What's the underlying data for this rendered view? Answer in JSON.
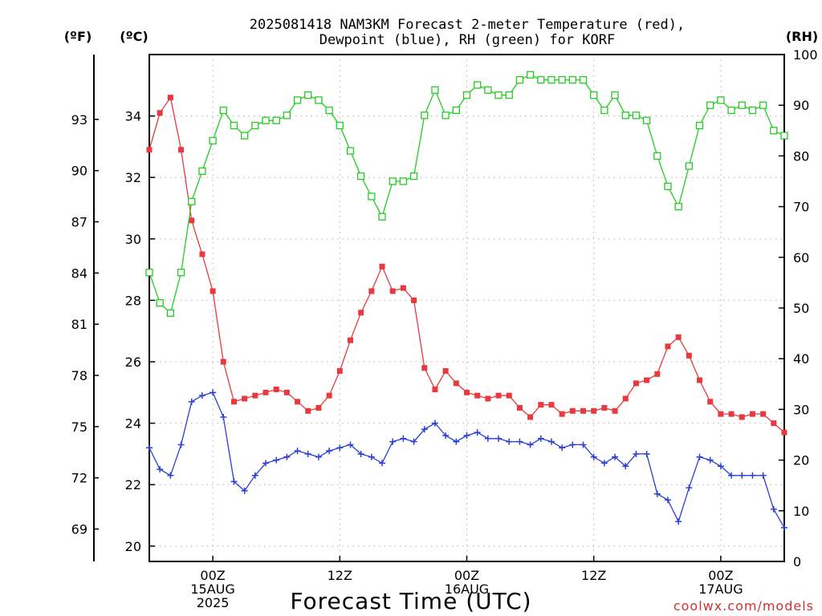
{
  "chart_data": {
    "type": "line",
    "title_line1": "2025081418 NAM3KM Forecast 2-meter Temperature (red),",
    "title_line2": "Dewpoint (blue), RH (green) for KORF",
    "xlabel": "Forecast Time (UTC)",
    "credit": "coolwx.com/models",
    "units": {
      "fahrenheit": "(ºF)",
      "celsius": "(ºC)",
      "rh": "(RH)"
    },
    "grid": true,
    "x_unit": "hours since 2025-08-14 18Z",
    "xlim": [
      0,
      60
    ],
    "x_ticks": [
      {
        "x": 6,
        "lines": [
          "00Z",
          "15AUG",
          "2025"
        ]
      },
      {
        "x": 18,
        "lines": [
          "12Z"
        ]
      },
      {
        "x": 30,
        "lines": [
          "00Z",
          "16AUG"
        ]
      },
      {
        "x": 42,
        "lines": [
          "12Z"
        ]
      },
      {
        "x": 54,
        "lines": [
          "00Z",
          "17AUG"
        ]
      }
    ],
    "y_celsius": {
      "lim": [
        19.5,
        36.0
      ],
      "ticks": [
        20,
        22,
        24,
        26,
        28,
        30,
        32,
        34
      ]
    },
    "y_fahrenheit_ticks": [
      69,
      72,
      75,
      78,
      81,
      84,
      87,
      90,
      93
    ],
    "y_rh": {
      "lim": [
        0,
        100
      ],
      "ticks": [
        0,
        10,
        20,
        30,
        40,
        50,
        60,
        70,
        80,
        90,
        100
      ]
    },
    "x": [
      0,
      1,
      2,
      3,
      4,
      5,
      6,
      7,
      8,
      9,
      10,
      11,
      12,
      13,
      14,
      15,
      16,
      17,
      18,
      19,
      20,
      21,
      22,
      23,
      24,
      25,
      26,
      27,
      28,
      29,
      30,
      31,
      32,
      33,
      34,
      35,
      36,
      37,
      38,
      39,
      40,
      41,
      42,
      43,
      44,
      45,
      46,
      47,
      48,
      49,
      50,
      51,
      52,
      53,
      54,
      55,
      56,
      57,
      58,
      59,
      60
    ],
    "series": [
      {
        "name": "Temperature",
        "unit": "C",
        "color": "#e8393f",
        "marker": "square-filled",
        "values": [
          32.9,
          34.1,
          34.6,
          32.9,
          30.6,
          29.5,
          28.3,
          26.0,
          24.7,
          24.8,
          24.9,
          25.0,
          25.1,
          25.0,
          24.7,
          24.4,
          24.5,
          24.9,
          25.7,
          26.7,
          27.6,
          28.3,
          29.1,
          28.3,
          28.4,
          28.0,
          25.8,
          25.1,
          25.7,
          25.3,
          25.0,
          24.9,
          24.8,
          24.9,
          24.9,
          24.5,
          24.2,
          24.6,
          24.6,
          24.3,
          24.4,
          24.4,
          24.4,
          24.5,
          24.4,
          24.8,
          25.3,
          25.4,
          25.6,
          26.5,
          26.8,
          26.2,
          25.4,
          24.7,
          24.3,
          24.3,
          24.2,
          24.3,
          24.3,
          24.0,
          23.7
        ]
      },
      {
        "name": "Dewpoint",
        "unit": "C",
        "color": "#2a3fd4",
        "marker": "plus",
        "values": [
          23.2,
          22.5,
          22.3,
          23.3,
          24.7,
          24.9,
          25.0,
          24.2,
          22.1,
          21.8,
          22.3,
          22.7,
          22.8,
          22.9,
          23.1,
          23.0,
          22.9,
          23.1,
          23.2,
          23.3,
          23.0,
          22.9,
          22.7,
          23.4,
          23.5,
          23.4,
          23.8,
          24.0,
          23.6,
          23.4,
          23.6,
          23.7,
          23.5,
          23.5,
          23.4,
          23.4,
          23.3,
          23.5,
          23.4,
          23.2,
          23.3,
          23.3,
          22.9,
          22.7,
          22.9,
          22.6,
          23.0,
          23.0,
          21.7,
          21.5,
          20.8,
          21.9,
          22.9,
          22.8,
          22.6,
          22.3,
          22.3,
          22.3,
          22.3,
          21.2,
          20.6
        ]
      },
      {
        "name": "RH",
        "unit": "%",
        "color": "#22cc22",
        "marker": "square-open",
        "values": [
          57,
          51,
          49,
          57,
          71,
          77,
          83,
          89,
          86,
          84,
          86,
          87,
          87,
          88,
          91,
          92,
          91,
          89,
          86,
          81,
          76,
          72,
          68,
          75,
          75,
          76,
          88,
          93,
          88,
          89,
          92,
          94,
          93,
          92,
          92,
          95,
          96,
          95,
          95,
          95,
          95,
          95,
          92,
          89,
          92,
          88,
          88,
          87,
          80,
          74,
          70,
          78,
          86,
          90,
          91,
          89,
          90,
          89,
          90,
          85,
          84
        ]
      }
    ]
  }
}
